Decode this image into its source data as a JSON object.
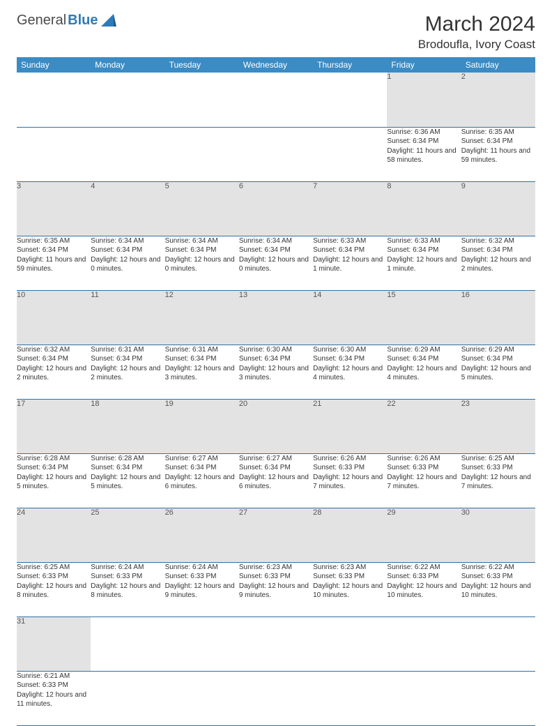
{
  "brand": {
    "part1": "General",
    "part2": "Blue"
  },
  "title": "March 2024",
  "location": "Brodoufla, Ivory Coast",
  "colors": {
    "header_bg": "#3b8bc4",
    "header_text": "#ffffff",
    "daynum_bg": "#e3e3e3",
    "border": "#2f6fa3",
    "brand_accent": "#2f7ab8"
  },
  "typography": {
    "title_fontsize": 30,
    "location_fontsize": 17,
    "dayname_fontsize": 12,
    "cell_fontsize": 10
  },
  "day_names": [
    "Sunday",
    "Monday",
    "Tuesday",
    "Wednesday",
    "Thursday",
    "Friday",
    "Saturday"
  ],
  "weeks": [
    [
      null,
      null,
      null,
      null,
      null,
      {
        "n": "1",
        "sunrise": "Sunrise: 6:36 AM",
        "sunset": "Sunset: 6:34 PM",
        "daylight": "Daylight: 11 hours and 58 minutes."
      },
      {
        "n": "2",
        "sunrise": "Sunrise: 6:35 AM",
        "sunset": "Sunset: 6:34 PM",
        "daylight": "Daylight: 11 hours and 59 minutes."
      }
    ],
    [
      {
        "n": "3",
        "sunrise": "Sunrise: 6:35 AM",
        "sunset": "Sunset: 6:34 PM",
        "daylight": "Daylight: 11 hours and 59 minutes."
      },
      {
        "n": "4",
        "sunrise": "Sunrise: 6:34 AM",
        "sunset": "Sunset: 6:34 PM",
        "daylight": "Daylight: 12 hours and 0 minutes."
      },
      {
        "n": "5",
        "sunrise": "Sunrise: 6:34 AM",
        "sunset": "Sunset: 6:34 PM",
        "daylight": "Daylight: 12 hours and 0 minutes."
      },
      {
        "n": "6",
        "sunrise": "Sunrise: 6:34 AM",
        "sunset": "Sunset: 6:34 PM",
        "daylight": "Daylight: 12 hours and 0 minutes."
      },
      {
        "n": "7",
        "sunrise": "Sunrise: 6:33 AM",
        "sunset": "Sunset: 6:34 PM",
        "daylight": "Daylight: 12 hours and 1 minute."
      },
      {
        "n": "8",
        "sunrise": "Sunrise: 6:33 AM",
        "sunset": "Sunset: 6:34 PM",
        "daylight": "Daylight: 12 hours and 1 minute."
      },
      {
        "n": "9",
        "sunrise": "Sunrise: 6:32 AM",
        "sunset": "Sunset: 6:34 PM",
        "daylight": "Daylight: 12 hours and 2 minutes."
      }
    ],
    [
      {
        "n": "10",
        "sunrise": "Sunrise: 6:32 AM",
        "sunset": "Sunset: 6:34 PM",
        "daylight": "Daylight: 12 hours and 2 minutes."
      },
      {
        "n": "11",
        "sunrise": "Sunrise: 6:31 AM",
        "sunset": "Sunset: 6:34 PM",
        "daylight": "Daylight: 12 hours and 2 minutes."
      },
      {
        "n": "12",
        "sunrise": "Sunrise: 6:31 AM",
        "sunset": "Sunset: 6:34 PM",
        "daylight": "Daylight: 12 hours and 3 minutes."
      },
      {
        "n": "13",
        "sunrise": "Sunrise: 6:30 AM",
        "sunset": "Sunset: 6:34 PM",
        "daylight": "Daylight: 12 hours and 3 minutes."
      },
      {
        "n": "14",
        "sunrise": "Sunrise: 6:30 AM",
        "sunset": "Sunset: 6:34 PM",
        "daylight": "Daylight: 12 hours and 4 minutes."
      },
      {
        "n": "15",
        "sunrise": "Sunrise: 6:29 AM",
        "sunset": "Sunset: 6:34 PM",
        "daylight": "Daylight: 12 hours and 4 minutes."
      },
      {
        "n": "16",
        "sunrise": "Sunrise: 6:29 AM",
        "sunset": "Sunset: 6:34 PM",
        "daylight": "Daylight: 12 hours and 5 minutes."
      }
    ],
    [
      {
        "n": "17",
        "sunrise": "Sunrise: 6:28 AM",
        "sunset": "Sunset: 6:34 PM",
        "daylight": "Daylight: 12 hours and 5 minutes."
      },
      {
        "n": "18",
        "sunrise": "Sunrise: 6:28 AM",
        "sunset": "Sunset: 6:34 PM",
        "daylight": "Daylight: 12 hours and 5 minutes."
      },
      {
        "n": "19",
        "sunrise": "Sunrise: 6:27 AM",
        "sunset": "Sunset: 6:34 PM",
        "daylight": "Daylight: 12 hours and 6 minutes."
      },
      {
        "n": "20",
        "sunrise": "Sunrise: 6:27 AM",
        "sunset": "Sunset: 6:34 PM",
        "daylight": "Daylight: 12 hours and 6 minutes."
      },
      {
        "n": "21",
        "sunrise": "Sunrise: 6:26 AM",
        "sunset": "Sunset: 6:33 PM",
        "daylight": "Daylight: 12 hours and 7 minutes."
      },
      {
        "n": "22",
        "sunrise": "Sunrise: 6:26 AM",
        "sunset": "Sunset: 6:33 PM",
        "daylight": "Daylight: 12 hours and 7 minutes."
      },
      {
        "n": "23",
        "sunrise": "Sunrise: 6:25 AM",
        "sunset": "Sunset: 6:33 PM",
        "daylight": "Daylight: 12 hours and 7 minutes."
      }
    ],
    [
      {
        "n": "24",
        "sunrise": "Sunrise: 6:25 AM",
        "sunset": "Sunset: 6:33 PM",
        "daylight": "Daylight: 12 hours and 8 minutes."
      },
      {
        "n": "25",
        "sunrise": "Sunrise: 6:24 AM",
        "sunset": "Sunset: 6:33 PM",
        "daylight": "Daylight: 12 hours and 8 minutes."
      },
      {
        "n": "26",
        "sunrise": "Sunrise: 6:24 AM",
        "sunset": "Sunset: 6:33 PM",
        "daylight": "Daylight: 12 hours and 9 minutes."
      },
      {
        "n": "27",
        "sunrise": "Sunrise: 6:23 AM",
        "sunset": "Sunset: 6:33 PM",
        "daylight": "Daylight: 12 hours and 9 minutes."
      },
      {
        "n": "28",
        "sunrise": "Sunrise: 6:23 AM",
        "sunset": "Sunset: 6:33 PM",
        "daylight": "Daylight: 12 hours and 10 minutes."
      },
      {
        "n": "29",
        "sunrise": "Sunrise: 6:22 AM",
        "sunset": "Sunset: 6:33 PM",
        "daylight": "Daylight: 12 hours and 10 minutes."
      },
      {
        "n": "30",
        "sunrise": "Sunrise: 6:22 AM",
        "sunset": "Sunset: 6:33 PM",
        "daylight": "Daylight: 12 hours and 10 minutes."
      }
    ],
    [
      {
        "n": "31",
        "sunrise": "Sunrise: 6:21 AM",
        "sunset": "Sunset: 6:33 PM",
        "daylight": "Daylight: 12 hours and 11 minutes."
      },
      null,
      null,
      null,
      null,
      null,
      null
    ]
  ]
}
